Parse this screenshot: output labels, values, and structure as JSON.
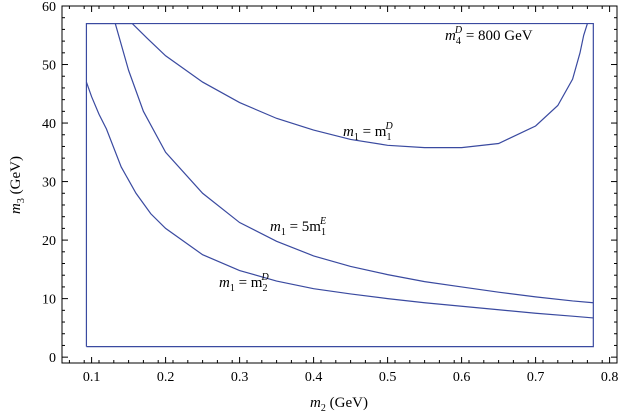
{
  "chart_data": {
    "type": "line",
    "title": "",
    "xlabel_var": "m",
    "xlabel_sub": "2",
    "xlabel_unit": " (GeV)",
    "ylabel_var": "m",
    "ylabel_sub": "3",
    "ylabel_unit": " (GeV)",
    "xlim": [
      0.06,
      0.81
    ],
    "ylim": [
      -1,
      60
    ],
    "xticks": [
      0.1,
      0.2,
      0.3,
      0.4,
      0.5,
      0.6,
      0.7,
      0.8
    ],
    "xtick_labels": [
      "0.1",
      "0.2",
      "0.3",
      "0.4",
      "0.5",
      "0.6",
      "0.7",
      "0.8"
    ],
    "yticks": [
      0,
      10,
      20,
      30,
      40,
      50,
      60
    ],
    "ytick_labels": [
      "0",
      "10",
      "20",
      "30",
      "40",
      "50",
      "60"
    ],
    "grid": false,
    "line_color": "#3a4aa0",
    "annotations": {
      "top_right": {
        "pre": "m",
        "sub": "4",
        "sup": "D",
        "post": " = 800 GeV"
      },
      "curve1": {
        "pre": "m",
        "sub": "1",
        "mid": " = m",
        "sub2": "1",
        "sup2": "D",
        "coef": ""
      },
      "curve2": {
        "pre": "m",
        "sub": "1",
        "mid": " = 5m",
        "sub2": "1",
        "sup2": "E",
        "coef": ""
      },
      "curve3": {
        "pre": "m",
        "sub": "1",
        "mid": " = m",
        "sub2": "2",
        "sup2": "D",
        "coef": ""
      }
    },
    "series": [
      {
        "x": [
          0.093,
          0.093,
          0.778,
          0.778,
          0.093
        ],
        "y": [
          1.8,
          57,
          57,
          1.8,
          1.8
        ]
      },
      {
        "x": [
          0.093,
          0.155,
          0.175,
          0.2,
          0.25,
          0.3,
          0.35,
          0.4,
          0.45,
          0.5,
          0.55,
          0.6,
          0.65,
          0.7,
          0.73,
          0.75,
          0.76,
          0.765,
          0.77
        ],
        "y": [
          57,
          57,
          54.5,
          51.5,
          47,
          43.5,
          40.8,
          38.8,
          37.2,
          36.2,
          35.8,
          35.8,
          36.5,
          39.5,
          43,
          47.5,
          52,
          55,
          57
        ]
      },
      {
        "x": [
          0.132,
          0.15,
          0.17,
          0.2,
          0.25,
          0.3,
          0.35,
          0.4,
          0.45,
          0.5,
          0.55,
          0.6,
          0.65,
          0.7,
          0.75,
          0.778
        ],
        "y": [
          57,
          49,
          42,
          35,
          28,
          23,
          19.8,
          17.3,
          15.5,
          14.1,
          12.9,
          12,
          11.1,
          10.3,
          9.6,
          9.3
        ]
      },
      {
        "x": [
          0.093,
          0.1,
          0.11,
          0.12,
          0.14,
          0.16,
          0.18,
          0.2,
          0.25,
          0.3,
          0.35,
          0.4,
          0.45,
          0.5,
          0.55,
          0.6,
          0.65,
          0.7,
          0.75,
          0.778
        ],
        "y": [
          47,
          44.5,
          41.5,
          39,
          32.5,
          28,
          24.5,
          22,
          17.5,
          14.8,
          13,
          11.7,
          10.8,
          10,
          9.3,
          8.7,
          8.1,
          7.5,
          7,
          6.7
        ]
      }
    ]
  }
}
